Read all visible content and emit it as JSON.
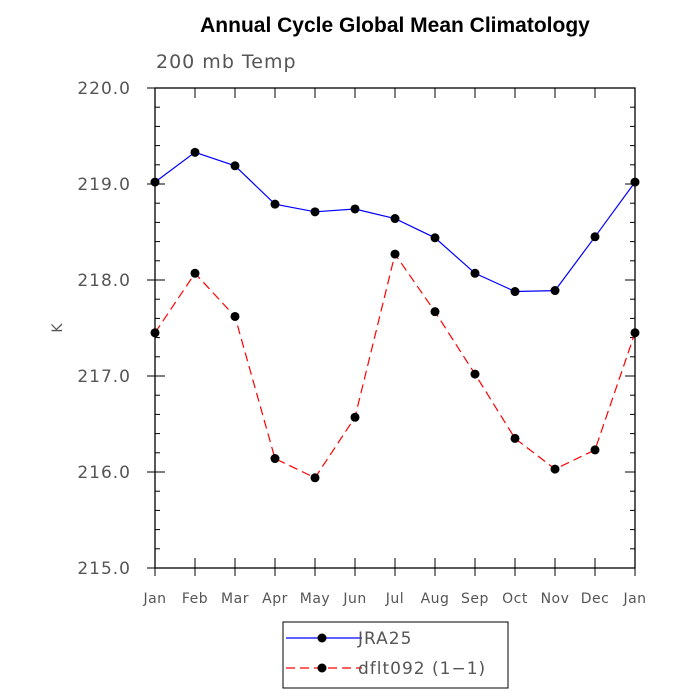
{
  "chart_data": {
    "type": "line",
    "title": "Annual Cycle Global Mean Climatology",
    "subtitle": "200 mb Temp",
    "xlabel": "",
    "ylabel": "K",
    "categories": [
      "Jan",
      "Feb",
      "Mar",
      "Apr",
      "May",
      "Jun",
      "Jul",
      "Aug",
      "Sep",
      "Oct",
      "Nov",
      "Dec",
      "Jan"
    ],
    "ylim": [
      215.0,
      220.0
    ],
    "yticks": [
      "215.0",
      "216.0",
      "217.0",
      "218.0",
      "219.0",
      "220.0"
    ],
    "grid": false,
    "legend_position": "bottom-center",
    "series": [
      {
        "name": "JRA25",
        "color": "#0000ff",
        "dash": "solid",
        "values": [
          219.02,
          219.33,
          219.19,
          218.79,
          218.71,
          218.74,
          218.64,
          218.44,
          218.07,
          217.88,
          217.89,
          218.45,
          219.02
        ]
      },
      {
        "name": "dflt092 (1−1)",
        "color": "#ff0000",
        "dash": "dashed",
        "values": [
          217.45,
          218.07,
          217.62,
          216.14,
          215.94,
          216.57,
          218.27,
          217.67,
          217.02,
          216.35,
          216.03,
          216.23,
          217.45
        ]
      }
    ]
  }
}
